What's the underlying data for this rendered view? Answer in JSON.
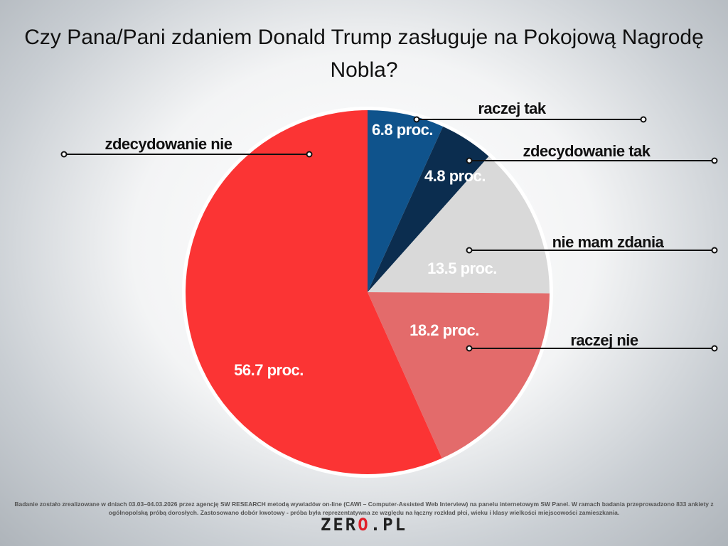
{
  "title": "Czy Pana/Pani zdaniem Donald Trump zasługuje na Pokojową Nagrodę Nobla?",
  "chart_data": {
    "type": "pie",
    "title": "Czy Pana/Pani zdaniem Donald Trump zasługuje na Pokojową Nagrodę Nobla?",
    "unit_suffix": " proc.",
    "start": "top, clockwise",
    "slices": [
      {
        "label": "raczej tak",
        "value": 6.8,
        "value_label": "6.8 proc.",
        "color": "#0f538c"
      },
      {
        "label": "zdecydowanie tak",
        "value": 4.8,
        "value_label": "4.8 proc.",
        "color": "#0b2d4f"
      },
      {
        "label": "nie mam zdania",
        "value": 13.5,
        "value_label": "13.5 proc.",
        "color": "#d9d9d9"
      },
      {
        "label": "raczej nie",
        "value": 18.2,
        "value_label": "18.2 proc.",
        "color": "#e36b6b"
      },
      {
        "label": "zdecydowanie nie",
        "value": 56.7,
        "value_label": "56.7 proc.",
        "color": "#fb3434"
      }
    ]
  },
  "footer": "Badanie zostało zrealizowane w dniach 03.03–04.03.2026 przez agencję SW RESEARCH metodą wywiadów on-line (CAWI – Computer-Assisted Web Interview) na panelu internetowym SW Panel. W ramach badania przeprowadzono 833 ankiety z ogólnopolską próbą dorosłych. Zastosowano dobór kwotowy - próba była reprezentatywna ze względu na łączny rozkład płci, wieku i klasy wielkości miejscowości zamieszkania.",
  "logo": {
    "part1": "ZER",
    "part2": "O",
    "part3": ".PL"
  }
}
